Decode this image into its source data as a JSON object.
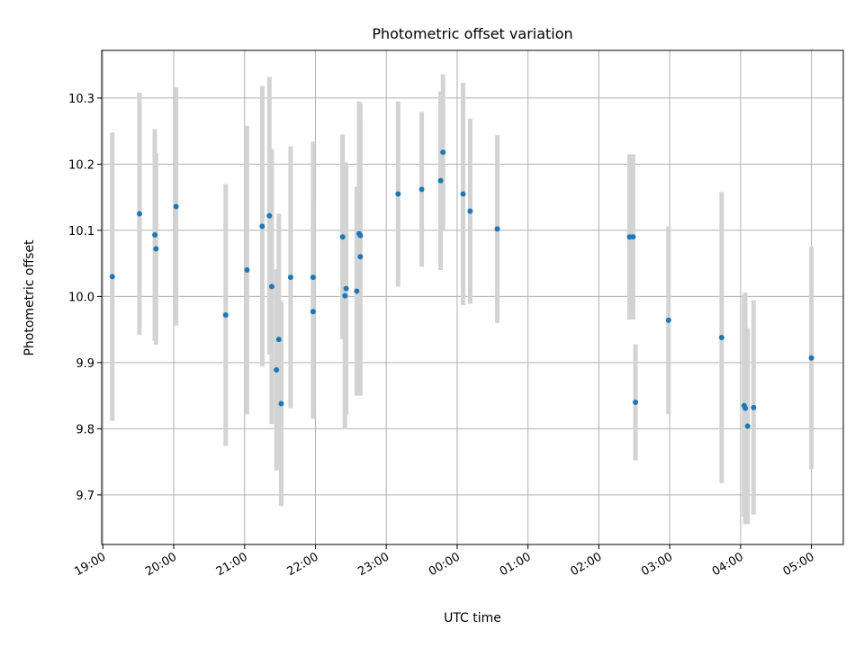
{
  "chart_data": {
    "type": "scatter",
    "title": "Photometric offset variation",
    "xlabel": "UTC time",
    "ylabel": "Photometric offset",
    "x_ticks": [
      "19:00",
      "20:00",
      "21:00",
      "22:00",
      "23:00",
      "00:00",
      "01:00",
      "02:00",
      "03:00",
      "04:00",
      "05:00"
    ],
    "y_ticks": [
      9.7,
      9.8,
      9.9,
      10.0,
      10.1,
      10.2,
      10.3
    ],
    "xlim": [
      "18:59",
      "05:27"
    ],
    "ylim": [
      9.625,
      10.372
    ],
    "grid": true,
    "colors": {
      "marker": "#1f77b4",
      "errorbar": "#d3d3d3",
      "grid": "#b0b0b0"
    },
    "points": [
      {
        "x": "19:08",
        "y": 10.03,
        "yerr": 0.218
      },
      {
        "x": "19:31",
        "y": 10.125,
        "yerr": 0.183
      },
      {
        "x": "19:44",
        "y": 10.093,
        "yerr": 0.16
      },
      {
        "x": "19:45",
        "y": 10.072,
        "yerr": 0.145
      },
      {
        "x": "20:02",
        "y": 10.136,
        "yerr": 0.18
      },
      {
        "x": "20:44",
        "y": 9.972,
        "yerr": 0.198
      },
      {
        "x": "21:02",
        "y": 10.04,
        "yerr": 0.218
      },
      {
        "x": "21:15",
        "y": 10.106,
        "yerr": 0.212
      },
      {
        "x": "21:21",
        "y": 10.122,
        "yerr": 0.21
      },
      {
        "x": "21:23",
        "y": 10.015,
        "yerr": 0.208
      },
      {
        "x": "21:27",
        "y": 9.889,
        "yerr": 0.152
      },
      {
        "x": "21:29",
        "y": 9.935,
        "yerr": 0.19
      },
      {
        "x": "21:31",
        "y": 9.838,
        "yerr": 0.155
      },
      {
        "x": "21:39",
        "y": 10.029,
        "yerr": 0.198
      },
      {
        "x": "21:58",
        "y": 10.029,
        "yerr": 0.205
      },
      {
        "x": "21:58",
        "y": 9.977,
        "yerr": 0.162
      },
      {
        "x": "22:23",
        "y": 10.09,
        "yerr": 0.155
      },
      {
        "x": "22:25",
        "y": 10.001,
        "yerr": 0.202
      },
      {
        "x": "22:26",
        "y": 10.012,
        "yerr": 0.19
      },
      {
        "x": "22:35",
        "y": 10.008,
        "yerr": 0.158
      },
      {
        "x": "22:37",
        "y": 10.095,
        "yerr": 0.2
      },
      {
        "x": "22:38",
        "y": 10.092,
        "yerr": 0.2
      },
      {
        "x": "22:38",
        "y": 10.06,
        "yerr": 0.21
      },
      {
        "x": "23:10",
        "y": 10.155,
        "yerr": 0.14
      },
      {
        "x": "23:30",
        "y": 10.162,
        "yerr": 0.117
      },
      {
        "x": "23:46",
        "y": 10.175,
        "yerr": 0.135
      },
      {
        "x": "23:48",
        "y": 10.218,
        "yerr": 0.118
      },
      {
        "x": "00:05",
        "y": 10.155,
        "yerr": 0.168
      },
      {
        "x": "00:11",
        "y": 10.129,
        "yerr": 0.14
      },
      {
        "x": "00:34",
        "y": 10.102,
        "yerr": 0.142
      },
      {
        "x": "02:26",
        "y": 10.09,
        "yerr": 0.125
      },
      {
        "x": "02:29",
        "y": 10.09,
        "yerr": 0.125
      },
      {
        "x": "02:31",
        "y": 9.84,
        "yerr": 0.088
      },
      {
        "x": "02:59",
        "y": 9.964,
        "yerr": 0.142
      },
      {
        "x": "03:44",
        "y": 9.938,
        "yerr": 0.22
      },
      {
        "x": "04:03",
        "y": 9.835,
        "yerr": 0.168
      },
      {
        "x": "04:04",
        "y": 9.831,
        "yerr": 0.175
      },
      {
        "x": "04:06",
        "y": 9.804,
        "yerr": 0.148
      },
      {
        "x": "04:11",
        "y": 9.832,
        "yerr": 0.162
      },
      {
        "x": "05:00",
        "y": 9.907,
        "yerr": 0.168
      }
    ]
  }
}
